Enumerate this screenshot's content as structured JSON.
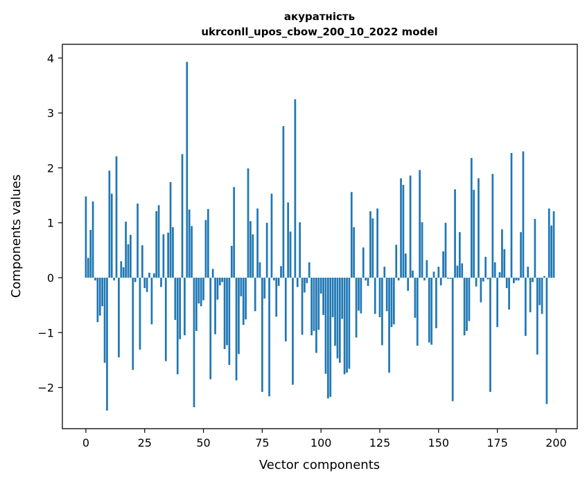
{
  "chart_data": {
    "type": "bar",
    "title_line1": "акуратність",
    "title_line2": "ukrconll_upos_cbow_200_10_2022 model",
    "xlabel": "Vector components",
    "ylabel": "Components values",
    "xlim": [
      -10,
      209
    ],
    "ylim": [
      -2.75,
      4.25
    ],
    "xticks": [
      0,
      25,
      50,
      75,
      100,
      125,
      150,
      175,
      200
    ],
    "yticks": [
      -2,
      -1,
      0,
      1,
      2,
      3,
      4
    ],
    "xtick_labels": [
      "0",
      "25",
      "50",
      "75",
      "100",
      "125",
      "150",
      "175",
      "200"
    ],
    "ytick_labels": [
      "−2",
      "−1",
      "0",
      "1",
      "2",
      "3",
      "4"
    ],
    "bar_color": "#1f77b4",
    "grid": false,
    "x": [
      0,
      1,
      2,
      3,
      4,
      5,
      6,
      7,
      8,
      9,
      10,
      11,
      12,
      13,
      14,
      15,
      16,
      17,
      18,
      19,
      20,
      21,
      22,
      23,
      24,
      25,
      26,
      27,
      28,
      29,
      30,
      31,
      32,
      33,
      34,
      35,
      36,
      37,
      38,
      39,
      40,
      41,
      42,
      43,
      44,
      45,
      46,
      47,
      48,
      49,
      50,
      51,
      52,
      53,
      54,
      55,
      56,
      57,
      58,
      59,
      60,
      61,
      62,
      63,
      64,
      65,
      66,
      67,
      68,
      69,
      70,
      71,
      72,
      73,
      74,
      75,
      76,
      77,
      78,
      79,
      80,
      81,
      82,
      83,
      84,
      85,
      86,
      87,
      88,
      89,
      90,
      91,
      92,
      93,
      94,
      95,
      96,
      97,
      98,
      99,
      100,
      101,
      102,
      103,
      104,
      105,
      106,
      107,
      108,
      109,
      110,
      111,
      112,
      113,
      114,
      115,
      116,
      117,
      118,
      119,
      120,
      121,
      122,
      123,
      124,
      125,
      126,
      127,
      128,
      129,
      130,
      131,
      132,
      133,
      134,
      135,
      136,
      137,
      138,
      139,
      140,
      141,
      142,
      143,
      144,
      145,
      146,
      147,
      148,
      149,
      150,
      151,
      152,
      153,
      154,
      155,
      156,
      157,
      158,
      159,
      160,
      161,
      162,
      163,
      164,
      165,
      166,
      167,
      168,
      169,
      170,
      171,
      172,
      173,
      174,
      175,
      176,
      177,
      178,
      179,
      180,
      181,
      182,
      183,
      184,
      185,
      186,
      187,
      188,
      189,
      190,
      191,
      192,
      193,
      194,
      195,
      196,
      197,
      198,
      199
    ],
    "values": [
      1.48,
      0.36,
      0.87,
      1.39,
      -0.05,
      -0.81,
      -0.69,
      -0.52,
      -1.55,
      -2.42,
      1.95,
      1.53,
      -0.05,
      2.21,
      -1.45,
      0.3,
      0.19,
      1.02,
      0.61,
      0.78,
      -1.68,
      -0.08,
      1.35,
      -1.31,
      0.59,
      -0.19,
      -0.26,
      0.09,
      -0.85,
      0.08,
      1.21,
      1.32,
      -0.17,
      0.79,
      -1.52,
      0.82,
      1.74,
      0.92,
      -0.77,
      -1.76,
      -1.12,
      2.25,
      -1.05,
      3.93,
      1.24,
      0.94,
      -2.36,
      -0.97,
      -0.47,
      -0.52,
      -0.41,
      1.05,
      1.25,
      -1.85,
      0.16,
      -1.03,
      -0.4,
      -0.14,
      -0.08,
      -1.3,
      -1.23,
      -1.59,
      0.58,
      1.65,
      -1.87,
      -1.39,
      -0.34,
      -0.86,
      -0.76,
      1.99,
      1.03,
      0.79,
      -0.61,
      1.26,
      0.28,
      -2.08,
      -0.38,
      1.0,
      -2.16,
      1.53,
      -0.05,
      -0.71,
      -0.15,
      0.21,
      2.76,
      -1.16,
      1.37,
      0.84,
      -1.95,
      3.25,
      -0.17,
      1.01,
      -1.04,
      -0.27,
      -0.1,
      0.28,
      -1.05,
      -0.97,
      -1.37,
      -0.95,
      -0.29,
      -0.68,
      -1.75,
      -2.2,
      -2.17,
      -0.72,
      -1.24,
      -1.47,
      -1.55,
      -0.75,
      -1.76,
      -1.73,
      -1.66,
      1.56,
      0.92,
      -1.09,
      -0.6,
      -0.65,
      0.55,
      -0.05,
      -0.15,
      1.21,
      1.08,
      -0.66,
      1.26,
      -0.72,
      -1.23,
      0.2,
      -0.61,
      -1.73,
      -0.9,
      -0.85,
      0.6,
      -0.05,
      1.81,
      1.69,
      0.44,
      -0.24,
      1.86,
      0.13,
      -0.73,
      -1.24,
      1.96,
      1.01,
      -0.05,
      0.32,
      -1.18,
      -1.22,
      0.11,
      -0.92,
      0.2,
      -0.14,
      0.48,
      1.0,
      -0.02,
      -0.02,
      -2.25,
      1.61,
      0.22,
      0.83,
      0.26,
      -1.05,
      -0.97,
      -0.79,
      2.18,
      1.6,
      -0.16,
      1.81,
      -0.45,
      -0.07,
      0.38,
      -0.03,
      -2.08,
      1.89,
      0.28,
      -0.9,
      0.1,
      0.88,
      0.52,
      -0.19,
      -0.58,
      2.27,
      -0.1,
      -0.05,
      -0.05,
      0.83,
      2.3,
      -1.06,
      0.2,
      -0.63,
      -0.08,
      1.07,
      -1.4,
      -0.5,
      -0.66,
      0.03,
      -2.3,
      1.26,
      0.95,
      1.21
    ]
  }
}
